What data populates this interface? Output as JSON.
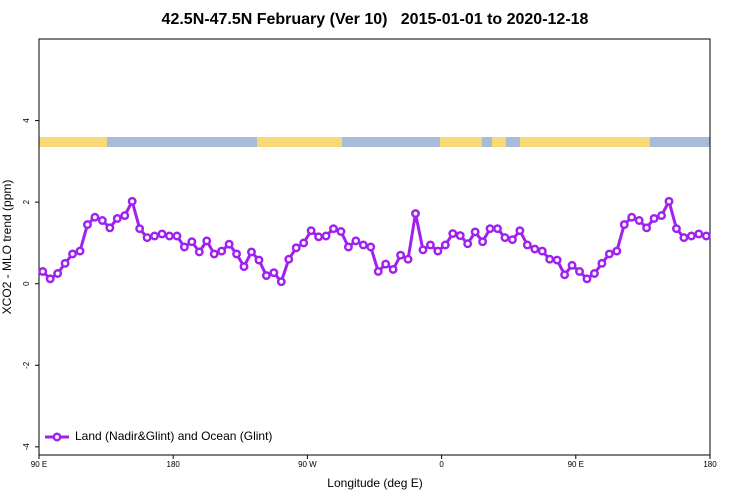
{
  "chart_data": {
    "type": "line",
    "title": "42.5N-47.5N February (Ver 10)   2015-01-01 to 2020-12-18",
    "x_label": "Longitude (deg E)",
    "y_label": "XCO2 - MLO trend (ppm)",
    "xlim": [
      90,
      540
    ],
    "ylim": [
      -4.2,
      6.0
    ],
    "xticks": [
      {
        "value": 90,
        "label": "90 E"
      },
      180,
      {
        "value": 270,
        "label": "90 W"
      },
      {
        "value": 360,
        "label": "0"
      },
      {
        "value": 450,
        "label": "90 E"
      },
      {
        "value": 540,
        "label": "180"
      }
    ],
    "yticks": [
      -4,
      -2,
      0,
      2,
      4
    ],
    "legend": "bottomleft",
    "grid": false,
    "x": [
      92.5,
      97.5,
      102.5,
      107.5,
      112.5,
      117.5,
      122.5,
      127.5,
      132.5,
      137.5,
      142.5,
      147.5,
      152.5,
      157.5,
      162.5,
      167.5,
      172.5,
      177.5,
      182.5,
      187.5,
      192.5,
      197.5,
      202.5,
      207.5,
      212.5,
      217.5,
      222.5,
      227.5,
      232.5,
      237.5,
      242.5,
      247.5,
      252.5,
      257.5,
      262.5,
      267.5,
      272.5,
      277.5,
      282.5,
      287.5,
      292.5,
      297.5,
      302.5,
      307.5,
      312.5,
      317.5,
      322.5,
      327.5,
      332.5,
      337.5,
      342.5,
      347.5,
      352.5,
      357.5,
      362.5,
      367.5,
      372.5,
      377.5,
      382.5,
      387.5,
      392.5,
      397.5,
      402.5,
      407.5,
      412.5,
      417.5,
      422.5,
      427.5,
      432.5,
      437.5,
      442.5,
      447.5,
      452.5,
      457.5,
      462.5,
      467.5,
      472.5,
      477.5,
      482.5,
      487.5,
      492.5,
      497.5,
      502.5,
      507.5,
      512.5,
      517.5,
      522.5,
      527.5,
      532.5,
      537.5
    ],
    "series": [
      {
        "name": "Land (Nadir&Glint) and Ocean (Glint)",
        "color": "#a020f0",
        "values": [
          0.3,
          0.12,
          0.25,
          0.5,
          0.73,
          0.8,
          1.45,
          1.63,
          1.55,
          1.37,
          1.6,
          1.67,
          2.02,
          1.35,
          1.13,
          1.17,
          1.22,
          1.17,
          1.17,
          0.9,
          1.03,
          0.78,
          1.05,
          0.73,
          0.8,
          0.97,
          0.73,
          0.42,
          0.78,
          0.58,
          0.2,
          0.27,
          0.05,
          0.6,
          0.88,
          1.0,
          1.3,
          1.15,
          1.17,
          1.35,
          1.28,
          0.9,
          1.05,
          0.95,
          0.9,
          0.3,
          0.48,
          0.35,
          0.7,
          0.6,
          1.72,
          0.83,
          0.95,
          0.8,
          0.95,
          1.23,
          1.18,
          0.98,
          1.27,
          1.03,
          1.35,
          1.35,
          1.13,
          1.08,
          1.3,
          0.95,
          0.85,
          0.8,
          0.6,
          0.58,
          0.22,
          0.45,
          0.3,
          0.12,
          0.25,
          0.5,
          0.73,
          0.8,
          1.45,
          1.63,
          1.55,
          1.37,
          1.6,
          1.67,
          2.02,
          1.35,
          1.13,
          1.17,
          1.22,
          1.17
        ]
      }
    ]
  }
}
